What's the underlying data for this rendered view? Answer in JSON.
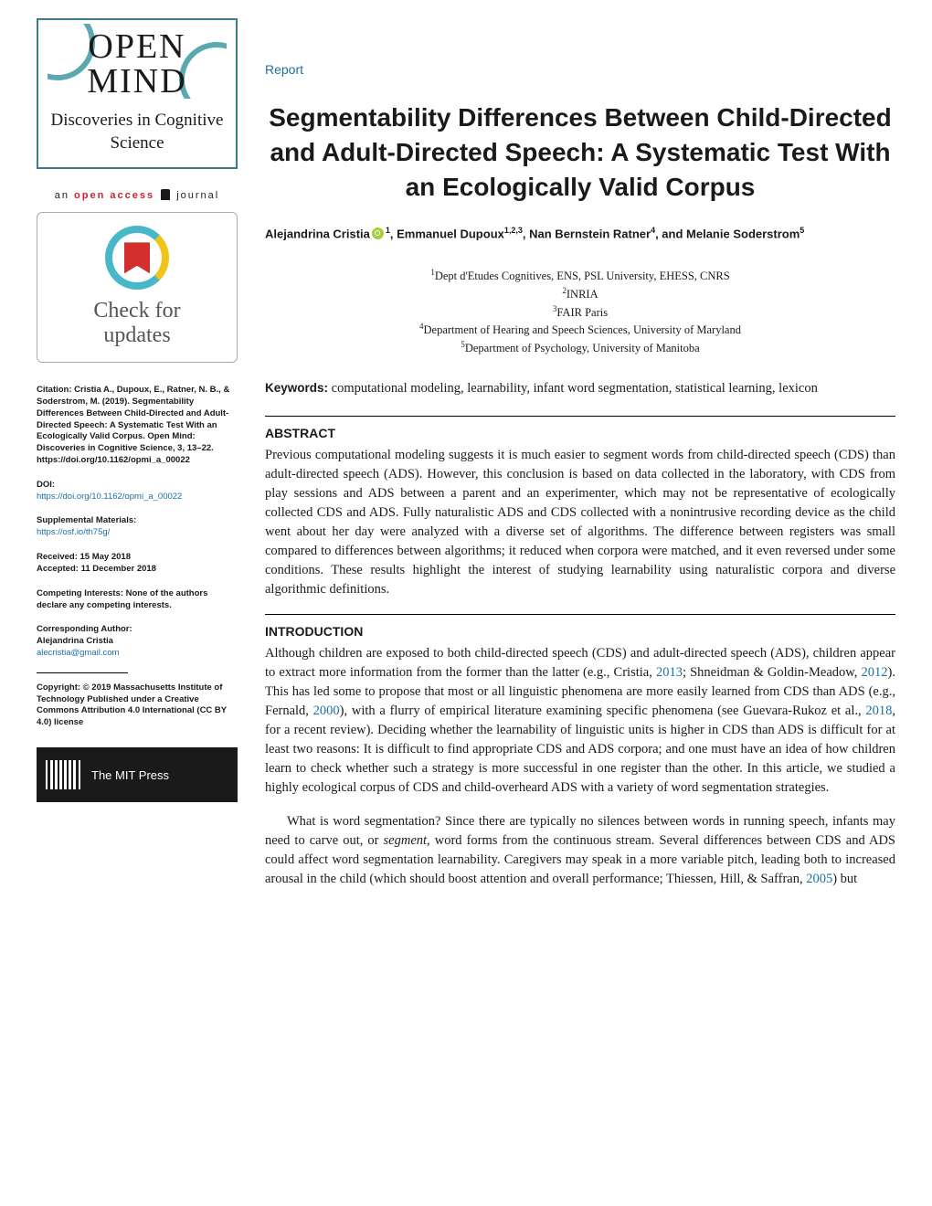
{
  "sidebar": {
    "logo_line1": "OPEN",
    "logo_line2": "MIND",
    "logo_subtitle": "Discoveries in Cognitive Science",
    "open_access_prefix": "an ",
    "open_access_bold": "open access",
    "open_access_suffix": " journal",
    "crossmark_line1": "Check for",
    "crossmark_line2": "updates",
    "citation": "Citation: Cristia A., Dupoux, E., Ratner, N. B., & Soderstrom, M. (2019). Segmentability Differences Between Child-Directed and Adult-Directed Speech: A Systematic Test With an Ecologically Valid Corpus. Open Mind: Discoveries in Cognitive Science, 3, 13–22. https://doi.org/10.1162/opmi_a_00022",
    "doi_label": "DOI:",
    "doi_link": "https://doi.org/10.1162/opmi_a_00022",
    "supp_label": "Supplemental Materials:",
    "supp_link": "https://osf.io/th75g/",
    "received": "Received: 15 May 2018",
    "accepted": "Accepted: 11 December 2018",
    "competing": "Competing Interests: None of the authors declare any competing interests.",
    "corr_label": "Corresponding Author:",
    "corr_name": "Alejandrina Cristia",
    "corr_email": "alecristia@gmail.com",
    "copyright": "Copyright: © 2019 Massachusetts Institute of Technology Published under a Creative Commons Attribution 4.0 International (CC BY 4.0) license",
    "press": "The MIT Press"
  },
  "article": {
    "report_label": "Report",
    "title": "Segmentability Differences Between Child-Directed and Adult-Directed Speech: A Systematic Test With an Ecologically Valid Corpus",
    "authors_html_parts": {
      "a1": "Alejandrina Cristia",
      "a1_sup": "1",
      "a2": "Emmanuel Dupoux",
      "a2_sup": "1,2,3",
      "a3": "Nan Bernstein Ratner",
      "a3_sup": "4",
      "a4": "Melanie Soderstrom",
      "a4_sup": "5"
    },
    "affiliations": [
      "Dept d'Etudes Cognitives, ENS, PSL University, EHESS, CNRS",
      "INRIA",
      "FAIR Paris",
      "Department of Hearing and Speech Sciences, University of Maryland",
      "Department of Psychology, University of Manitoba"
    ],
    "keywords_label": "Keywords:",
    "keywords_text": " computational modeling, learnability, infant word segmentation, statistical learning, lexicon",
    "abstract_label": "ABSTRACT",
    "abstract_text": "Previous computational modeling suggests it is much easier to segment words from child-directed speech (CDS) than adult-directed speech (ADS). However, this conclusion is based on data collected in the laboratory, with CDS from play sessions and ADS between a parent and an experimenter, which may not be representative of ecologically collected CDS and ADS. Fully naturalistic ADS and CDS collected with a nonintrusive recording device as the child went about her day were analyzed with a diverse set of algorithms. The difference between registers was small compared to differences between algorithms; it reduced when corpora were matched, and it even reversed under some conditions. These results highlight the interest of studying learnability using naturalistic corpora and diverse algorithmic definitions.",
    "intro_label": "INTRODUCTION",
    "intro_p1_pre": "Although children are exposed to both child-directed speech (CDS) and adult-directed speech (ADS), children appear to extract more information from the former than the latter (e.g., Cristia, ",
    "intro_y2013": "2013",
    "intro_mid1": "; Shneidman & Goldin-Meadow, ",
    "intro_y2012": "2012",
    "intro_mid2": "). This has led some to propose that most or all linguistic phenomena are more easily learned from CDS than ADS (e.g., Fernald, ",
    "intro_y2000": "2000",
    "intro_mid3": "), with a flurry of empirical literature examining specific phenomena (see Guevara-Rukoz et al., ",
    "intro_y2018": "2018",
    "intro_post1": ", for a recent review). Deciding whether the learnability of linguistic units is higher in CDS than ADS is difficult for at least two reasons: It is difficult to find appropriate CDS and ADS corpora; and one must have an idea of how children learn to check whether such a strategy is more successful in one register than the other. In this article, we studied a highly ecological corpus of CDS and child-overheard ADS with a variety of word segmentation strategies.",
    "intro_p2_pre": "What is word segmentation? Since there are typically no silences between words in running speech, infants may need to carve out, or ",
    "intro_p2_em": "segment",
    "intro_p2_mid": ", word forms from the continuous stream. Several differences between CDS and ADS could affect word segmentation learnability. Caregivers may speak in a more variable pitch, leading both to increased arousal in the child (which should boost attention and overall performance; Thiessen, Hill, & Saffran, ",
    "intro_y2005": "2005",
    "intro_p2_post": ") but"
  },
  "colors": {
    "link": "#1b6fa3",
    "red": "#d11f2e",
    "teal": "#48b8c9"
  }
}
